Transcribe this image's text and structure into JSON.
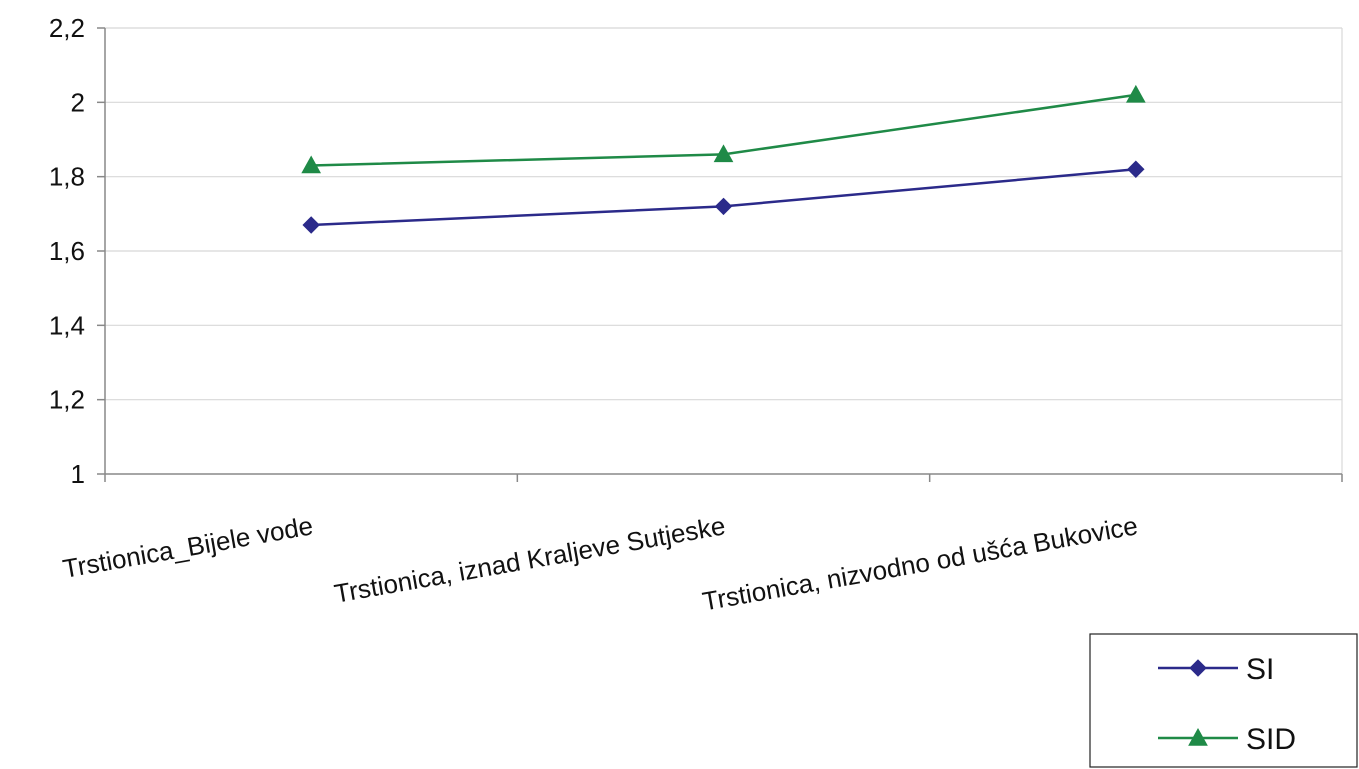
{
  "chart_data": {
    "type": "line",
    "categories": [
      "Trstionica_Bijele vode",
      "Trstionica, iznad Kraljeve Sutjeske",
      "Trstionica, nizvodno od ušća Bukovice"
    ],
    "series": [
      {
        "name": "SI",
        "values": [
          1.67,
          1.72,
          1.82
        ],
        "color": "#2b2a8a",
        "marker": "diamond"
      },
      {
        "name": "SID",
        "values": [
          1.83,
          1.86,
          2.02
        ],
        "color": "#1f8a47",
        "marker": "triangle"
      }
    ],
    "ylim": [
      1,
      2.2
    ],
    "yticks": [
      "1",
      "1,2",
      "1,4",
      "1,6",
      "1,8",
      "2",
      "2,2"
    ],
    "grid": true,
    "legend": "bottom-right",
    "gridColor": "#d8d8d8",
    "axisColor": "#888888"
  }
}
